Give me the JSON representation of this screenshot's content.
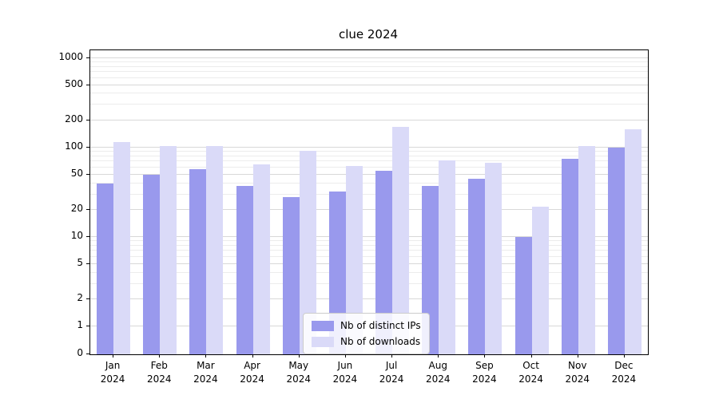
{
  "title": "clue 2024",
  "colors": {
    "ips": "#9999ed",
    "downloads": "#dadaf8",
    "grid_major": "#d8d8d8",
    "grid_minor": "#ececec",
    "spine": "#000000"
  },
  "y_axis": {
    "scale": "symlog",
    "ticks": [
      0,
      1,
      2,
      5,
      10,
      20,
      50,
      100,
      200,
      500,
      1000
    ],
    "minor_ticks": [
      3,
      4,
      6,
      7,
      8,
      9,
      30,
      40,
      60,
      70,
      80,
      90,
      300,
      400,
      600,
      700,
      800,
      900
    ]
  },
  "chart_data": {
    "type": "bar",
    "title": "clue 2024",
    "categories": [
      "Jan",
      "Feb",
      "Mar",
      "Apr",
      "May",
      "Jun",
      "Jul",
      "Aug",
      "Sep",
      "Oct",
      "Nov",
      "Dec"
    ],
    "year": "2024",
    "series": [
      {
        "name": "Nb of distinct IPs",
        "values": [
          40,
          50,
          57,
          37,
          28,
          32,
          55,
          37,
          45,
          10,
          75,
          100
        ]
      },
      {
        "name": "Nb of downloads",
        "values": [
          115,
          105,
          105,
          65,
          92,
          62,
          170,
          72,
          67,
          22,
          105,
          160
        ]
      }
    ],
    "ylim": [
      0,
      1000
    ],
    "yscale": "symlog",
    "legend_position": "lower center",
    "grid": true
  }
}
